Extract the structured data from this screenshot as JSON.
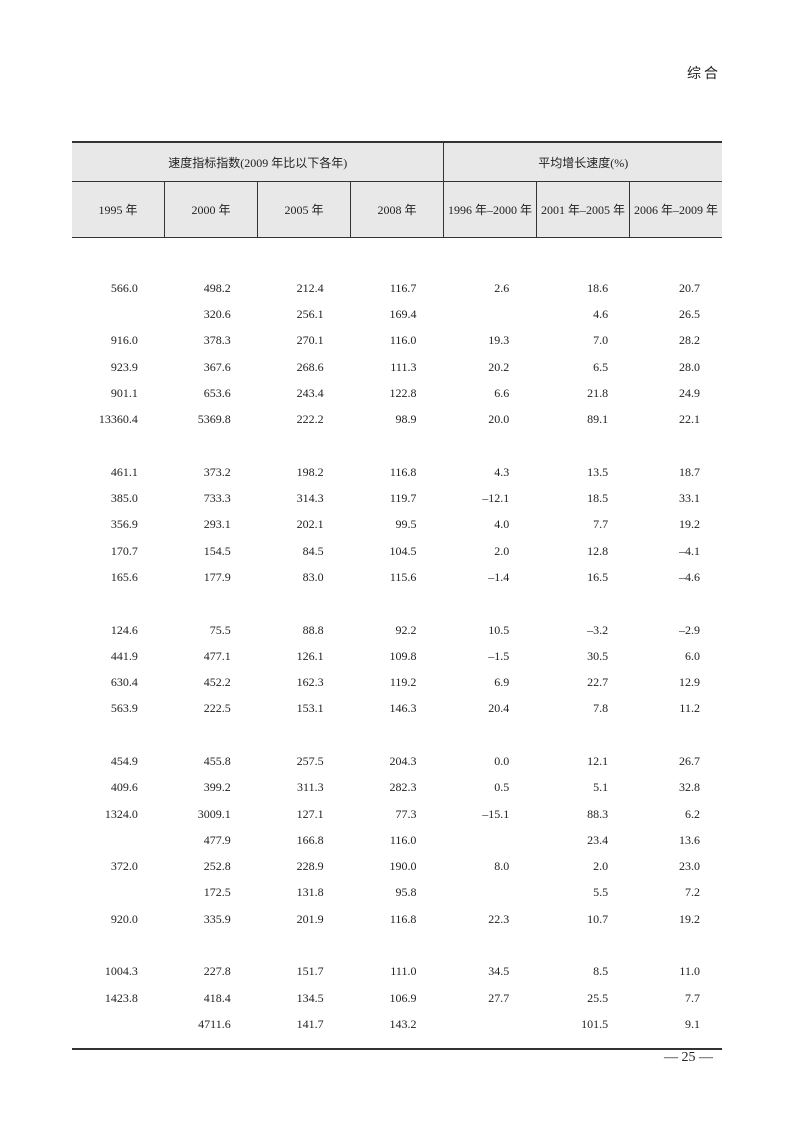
{
  "section_label": "综合",
  "table": {
    "group_headers": {
      "index": "速度指标指数(2009 年比以下各年)",
      "growth": "平均增长速度(%)"
    },
    "columns": [
      "1995 年",
      "2000 年",
      "2005 年",
      "2008 年",
      "1996 年–2000 年",
      "2001 年–2005 年",
      "2006 年–2009 年"
    ],
    "groups": [
      [
        [
          "566.0",
          "498.2",
          "212.4",
          "116.7",
          "2.6",
          "18.6",
          "20.7"
        ],
        [
          "",
          "320.6",
          "256.1",
          "169.4",
          "",
          "4.6",
          "26.5"
        ],
        [
          "916.0",
          "378.3",
          "270.1",
          "116.0",
          "19.3",
          "7.0",
          "28.2"
        ],
        [
          "923.9",
          "367.6",
          "268.6",
          "111.3",
          "20.2",
          "6.5",
          "28.0"
        ],
        [
          "901.1",
          "653.6",
          "243.4",
          "122.8",
          "6.6",
          "21.8",
          "24.9"
        ],
        [
          "13360.4",
          "5369.8",
          "222.2",
          "98.9",
          "20.0",
          "89.1",
          "22.1"
        ]
      ],
      [
        [
          "461.1",
          "373.2",
          "198.2",
          "116.8",
          "4.3",
          "13.5",
          "18.7"
        ],
        [
          "385.0",
          "733.3",
          "314.3",
          "119.7",
          "–12.1",
          "18.5",
          "33.1"
        ],
        [
          "356.9",
          "293.1",
          "202.1",
          "99.5",
          "4.0",
          "7.7",
          "19.2"
        ],
        [
          "170.7",
          "154.5",
          "84.5",
          "104.5",
          "2.0",
          "12.8",
          "–4.1"
        ],
        [
          "165.6",
          "177.9",
          "83.0",
          "115.6",
          "–1.4",
          "16.5",
          "–4.6"
        ]
      ],
      [
        [
          "124.6",
          "75.5",
          "88.8",
          "92.2",
          "10.5",
          "–3.2",
          "–2.9"
        ],
        [
          "441.9",
          "477.1",
          "126.1",
          "109.8",
          "–1.5",
          "30.5",
          "6.0"
        ],
        [
          "630.4",
          "452.2",
          "162.3",
          "119.2",
          "6.9",
          "22.7",
          "12.9"
        ],
        [
          "563.9",
          "222.5",
          "153.1",
          "146.3",
          "20.4",
          "7.8",
          "11.2"
        ]
      ],
      [
        [
          "454.9",
          "455.8",
          "257.5",
          "204.3",
          "0.0",
          "12.1",
          "26.7"
        ],
        [
          "409.6",
          "399.2",
          "311.3",
          "282.3",
          "0.5",
          "5.1",
          "32.8"
        ],
        [
          "1324.0",
          "3009.1",
          "127.1",
          "77.3",
          "–15.1",
          "88.3",
          "6.2"
        ],
        [
          "",
          "477.9",
          "166.8",
          "116.0",
          "",
          "23.4",
          "13.6"
        ],
        [
          "372.0",
          "252.8",
          "228.9",
          "190.0",
          "8.0",
          "2.0",
          "23.0"
        ],
        [
          "",
          "172.5",
          "131.8",
          "95.8",
          "",
          "5.5",
          "7.2"
        ],
        [
          "920.0",
          "335.9",
          "201.9",
          "116.8",
          "22.3",
          "10.7",
          "19.2"
        ]
      ],
      [
        [
          "1004.3",
          "227.8",
          "151.7",
          "111.0",
          "34.5",
          "8.5",
          "11.0"
        ],
        [
          "1423.8",
          "418.4",
          "134.5",
          "106.9",
          "27.7",
          "25.5",
          "7.7"
        ],
        [
          "",
          "4711.6",
          "141.7",
          "143.2",
          "",
          "101.5",
          "9.1"
        ]
      ]
    ]
  },
  "page_number": "— 25 —"
}
